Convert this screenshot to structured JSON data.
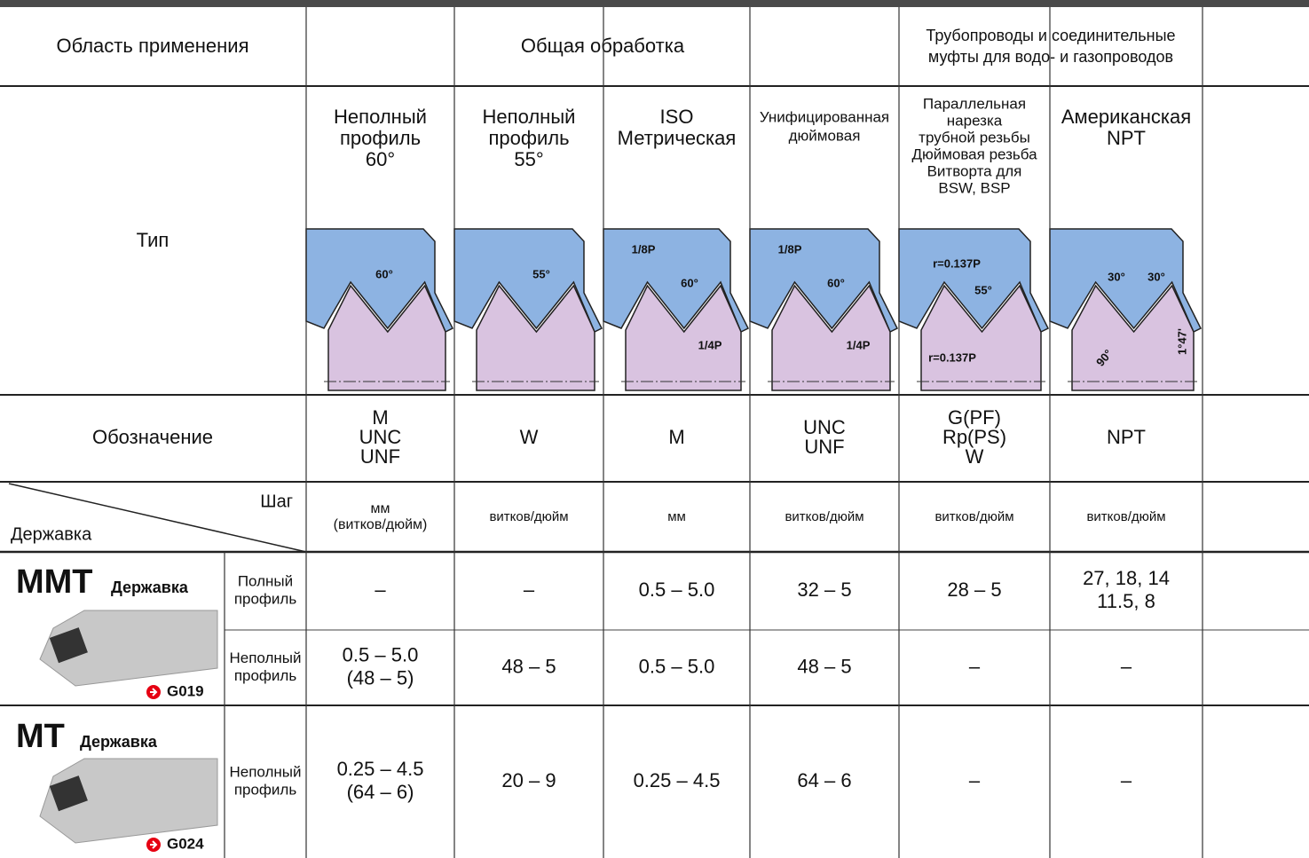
{
  "header": {
    "area": "Область применения",
    "general": "Общая обработка",
    "pipes": [
      "Трубопроводы и соединительные",
      "муфты для водо- и газопроводов"
    ]
  },
  "type": {
    "label": "Тип",
    "columns": [
      {
        "name": [
          "Неполный",
          "профиль",
          "60°"
        ],
        "diagram": [
          "60°"
        ]
      },
      {
        "name": [
          "Неполный",
          "профиль",
          "55°"
        ],
        "diagram": [
          "55°"
        ]
      },
      {
        "name": [
          "ISO",
          "Метрическая"
        ],
        "diagram": [
          "1/8P",
          "60°",
          "1/4P"
        ]
      },
      {
        "name": [
          "Унифицированная",
          "дюймовая"
        ],
        "diagram": [
          "1/8P",
          "60°",
          "1/4P"
        ]
      },
      {
        "name": [
          "Параллельная",
          "нарезка",
          "трубной резьбы",
          "Дюймовая резьба",
          "Витворта для",
          "BSW, BSP"
        ],
        "diagram": [
          "r=0.137P",
          "55°",
          "r=0.137P"
        ]
      },
      {
        "name": [
          "Американская",
          "NPT"
        ],
        "diagram": [
          "30°",
          "30°",
          "90°",
          "1°47'"
        ]
      }
    ]
  },
  "designation": {
    "label": "Обозначение",
    "values": [
      [
        "M",
        "UNC",
        "UNF"
      ],
      [
        "W"
      ],
      [
        "M"
      ],
      [
        "UNC",
        "UNF"
      ],
      [
        "G(PF)",
        "Rp(PS)",
        "W"
      ],
      [
        "NPT"
      ]
    ]
  },
  "pitch": {
    "label": "Шаг",
    "holder_label": "Державка",
    "units": [
      [
        "мм",
        "(витков/дюйм)"
      ],
      [
        "витков/дюйм"
      ],
      [
        "мм"
      ],
      [
        "витков/дюйм"
      ],
      [
        "витков/дюйм"
      ],
      [
        "витков/дюйм"
      ]
    ]
  },
  "holders": [
    {
      "name": "MMT",
      "suffix": "Державка",
      "ref": "G019",
      "rows": [
        {
          "profile": [
            "Полный",
            "профиль"
          ],
          "values": [
            [
              "–"
            ],
            [
              "–"
            ],
            [
              "0.5 – 5.0"
            ],
            [
              "32 – 5"
            ],
            [
              "28 – 5"
            ],
            [
              "27, 18, 14",
              "11.5, 8"
            ]
          ]
        },
        {
          "profile": [
            "Неполный",
            "профиль"
          ],
          "values": [
            [
              "0.5 – 5.0",
              "(48 – 5)"
            ],
            [
              "48 – 5"
            ],
            [
              "0.5 – 5.0"
            ],
            [
              "48 – 5"
            ],
            [
              "–"
            ],
            [
              "–"
            ]
          ]
        }
      ]
    },
    {
      "name": "MT",
      "suffix": "Державка",
      "ref": "G024",
      "rows": [
        {
          "profile": [
            "Неполный",
            "профиль"
          ],
          "values": [
            [
              "0.25 – 4.5",
              "(64 – 6)"
            ],
            [
              "20 – 9"
            ],
            [
              "0.25 – 4.5"
            ],
            [
              "64 – 6"
            ],
            [
              "–"
            ],
            [
              "–"
            ]
          ]
        }
      ]
    }
  ]
}
